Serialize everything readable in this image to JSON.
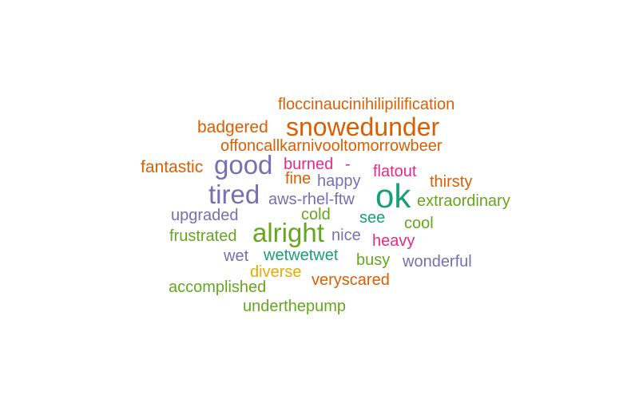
{
  "palette": {
    "teal": "#1b9e77",
    "orange": "#d95f02",
    "purple": "#7570b3",
    "magenta": "#e7298a",
    "green": "#66a61e",
    "gold": "#e6ab02"
  },
  "words": [
    {
      "text": "floccinaucinihilipilification",
      "color": "orange"
    },
    {
      "text": "badgered",
      "color": "orange"
    },
    {
      "text": "snowedunder",
      "color": "orange"
    },
    {
      "text": "offoncallkarnivooltomorrowbeer",
      "color": "orange"
    },
    {
      "text": "fantastic",
      "color": "orange"
    },
    {
      "text": "good",
      "color": "purple"
    },
    {
      "text": "burned",
      "color": "magenta"
    },
    {
      "text": "-",
      "color": "magenta"
    },
    {
      "text": "flatout",
      "color": "magenta"
    },
    {
      "text": "fine",
      "color": "orange"
    },
    {
      "text": "happy",
      "color": "purple"
    },
    {
      "text": "thirsty",
      "color": "orange"
    },
    {
      "text": "tired",
      "color": "purple"
    },
    {
      "text": "aws-rhel-ftw",
      "color": "purple"
    },
    {
      "text": "ok",
      "color": "teal"
    },
    {
      "text": "extraordinary",
      "color": "green"
    },
    {
      "text": "upgraded",
      "color": "purple"
    },
    {
      "text": "cold",
      "color": "green"
    },
    {
      "text": "see",
      "color": "teal"
    },
    {
      "text": "cool",
      "color": "green"
    },
    {
      "text": "frustrated",
      "color": "green"
    },
    {
      "text": "alright",
      "color": "green"
    },
    {
      "text": "nice",
      "color": "purple"
    },
    {
      "text": "heavy",
      "color": "magenta"
    },
    {
      "text": "wet",
      "color": "purple"
    },
    {
      "text": "wetwetwet",
      "color": "teal"
    },
    {
      "text": "busy",
      "color": "green"
    },
    {
      "text": "wonderful",
      "color": "purple"
    },
    {
      "text": "diverse",
      "color": "gold"
    },
    {
      "text": "accomplished",
      "color": "green"
    },
    {
      "text": "veryscared",
      "color": "orange"
    },
    {
      "text": "underthepump",
      "color": "green"
    }
  ]
}
